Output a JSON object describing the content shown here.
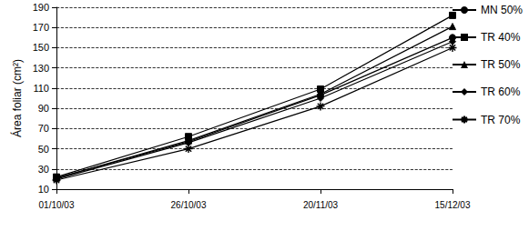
{
  "chart_data": {
    "type": "line",
    "y_label": "Área foliar (cm²)",
    "categories": [
      "01/10/03",
      "26/10/03",
      "20/11/03",
      "15/12/03"
    ],
    "series": [
      {
        "name": "MN 50%",
        "color": "#000000",
        "marker": "circle",
        "values": [
          21,
          57,
          103,
          160
        ]
      },
      {
        "name": "TR 40%",
        "color": "#000000",
        "marker": "square",
        "values": [
          22,
          62,
          109,
          182
        ]
      },
      {
        "name": "TR 50%",
        "color": "#000000",
        "marker": "triangle",
        "values": [
          21,
          58,
          104,
          171
        ]
      },
      {
        "name": "TR 60%",
        "color": "#000000",
        "marker": "diamond",
        "values": [
          20,
          56,
          100,
          156
        ]
      },
      {
        "name": "TR 70%",
        "color": "#000000",
        "marker": "star",
        "values": [
          19,
          50,
          92,
          150
        ]
      }
    ],
    "ylim": [
      10,
      190
    ],
    "yticks": [
      10,
      30,
      50,
      70,
      90,
      110,
      130,
      150,
      170,
      190
    ],
    "grid": true,
    "legend": "right"
  }
}
